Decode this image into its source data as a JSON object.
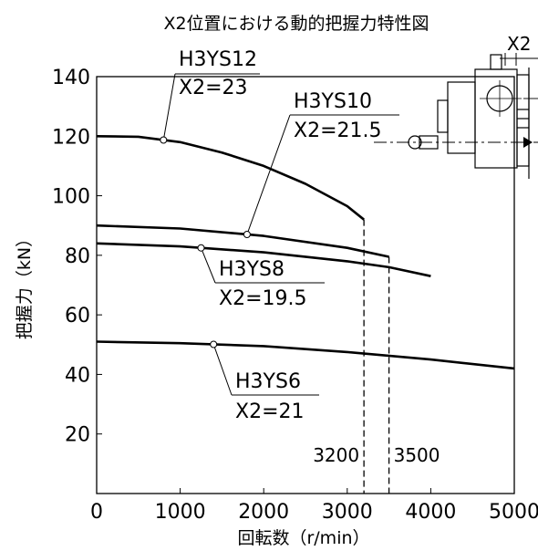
{
  "chart_data": {
    "type": "line",
    "title": "X2位置における動的把握力特性図",
    "xlabel": "回転数（r/min）",
    "ylabel": "把握力（kN）",
    "xlim": [
      0,
      5000
    ],
    "ylim": [
      0,
      140
    ],
    "xticks": [
      0,
      1000,
      2000,
      3000,
      4000,
      5000
    ],
    "yticks": [
      20,
      40,
      60,
      80,
      100,
      120,
      140
    ],
    "grid": false,
    "series": [
      {
        "name": "H3YS12",
        "x2_label": "X2=23",
        "color": "#000000",
        "points": [
          [
            0,
            120
          ],
          [
            500,
            119.8
          ],
          [
            1000,
            118
          ],
          [
            1500,
            114.5
          ],
          [
            2000,
            110
          ],
          [
            2500,
            104
          ],
          [
            3000,
            96.5
          ],
          [
            3200,
            92
          ]
        ]
      },
      {
        "name": "H3YS10",
        "x2_label": "X2=21.5",
        "color": "#000000",
        "points": [
          [
            0,
            90
          ],
          [
            1000,
            89
          ],
          [
            2000,
            86.5
          ],
          [
            3000,
            82.5
          ],
          [
            3500,
            79.5
          ]
        ]
      },
      {
        "name": "H3YS8",
        "x2_label": "X2=19.5",
        "color": "#000000",
        "points": [
          [
            0,
            84
          ],
          [
            1000,
            83
          ],
          [
            2000,
            81
          ],
          [
            3000,
            78
          ],
          [
            3500,
            76
          ],
          [
            4000,
            73
          ]
        ]
      },
      {
        "name": "H3YS6",
        "x2_label": "X2=21",
        "color": "#000000",
        "points": [
          [
            0,
            51
          ],
          [
            1000,
            50.5
          ],
          [
            2000,
            49.5
          ],
          [
            3000,
            47.5
          ],
          [
            4000,
            45
          ],
          [
            5000,
            42
          ]
        ]
      }
    ],
    "limits": [
      {
        "x": 3200,
        "label": "3200"
      },
      {
        "x": 3500,
        "label": "3500"
      }
    ],
    "inset": {
      "label": "X2"
    }
  }
}
